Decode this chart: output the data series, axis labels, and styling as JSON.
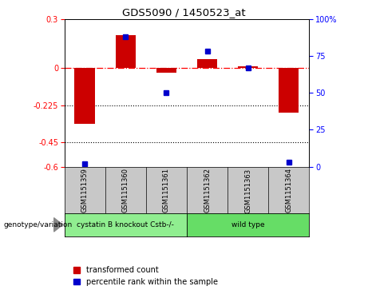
{
  "title": "GDS5090 / 1450523_at",
  "samples": [
    "GSM1151359",
    "GSM1151360",
    "GSM1151361",
    "GSM1151362",
    "GSM1151363",
    "GSM1151364"
  ],
  "transformed_count": [
    -0.34,
    0.2,
    -0.03,
    0.055,
    0.01,
    -0.27
  ],
  "percentile_rank": [
    2,
    88,
    50,
    78,
    67,
    3
  ],
  "group1_label": "cystatin B knockout Cstb-/-",
  "group2_label": "wild type",
  "group1_color": "#90EE90",
  "group2_color": "#66DD66",
  "sample_box_color": "#C8C8C8",
  "bar_color": "#CC0000",
  "dot_color": "#0000CC",
  "ylim_left": [
    -0.6,
    0.3
  ],
  "ylim_right": [
    0,
    100
  ],
  "yticks_left": [
    -0.6,
    -0.45,
    -0.225,
    0,
    0.3
  ],
  "yticks_right": [
    0,
    25,
    50,
    75,
    100
  ],
  "dotted_lines": [
    -0.225,
    -0.45
  ],
  "legend_items": [
    "transformed count",
    "percentile rank within the sample"
  ],
  "genotype_label": "genotype/variation",
  "background_color": "#FFFFFF"
}
